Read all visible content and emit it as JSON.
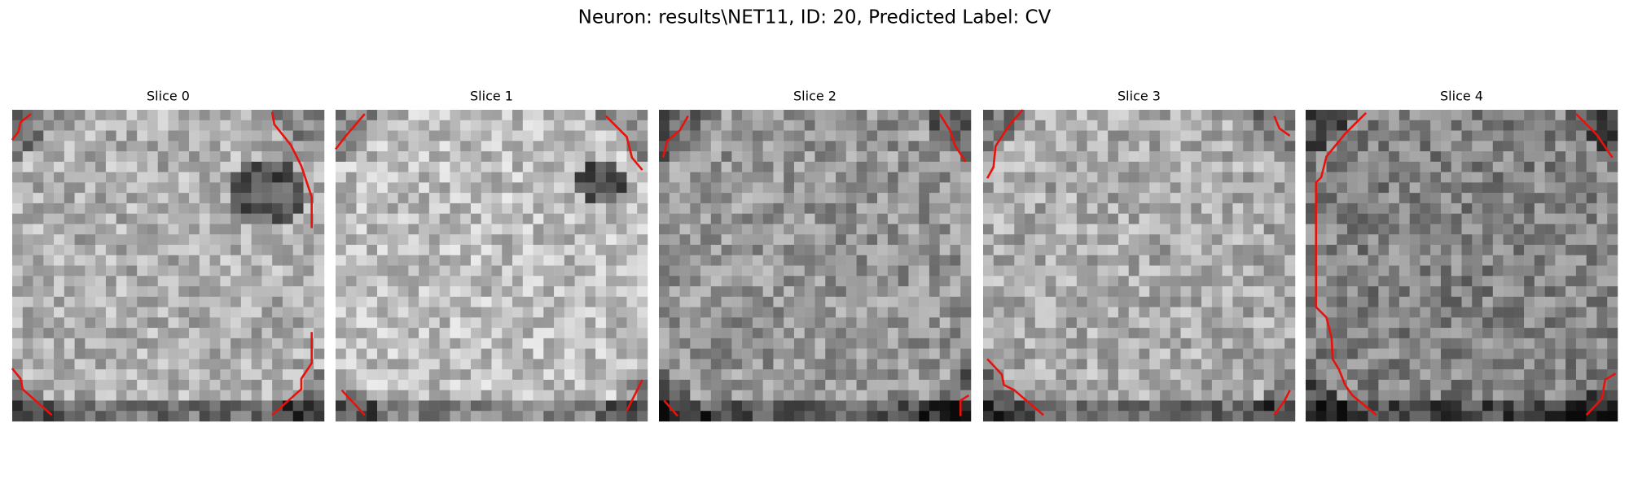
{
  "title": "Neuron: results\\NET11, ID: 20, Predicted Label: CV",
  "panels": [
    {
      "title": "Slice 0"
    },
    {
      "title": "Slice 1"
    },
    {
      "title": "Slice 2"
    },
    {
      "title": "Slice 3"
    },
    {
      "title": "Slice 4"
    }
  ]
}
